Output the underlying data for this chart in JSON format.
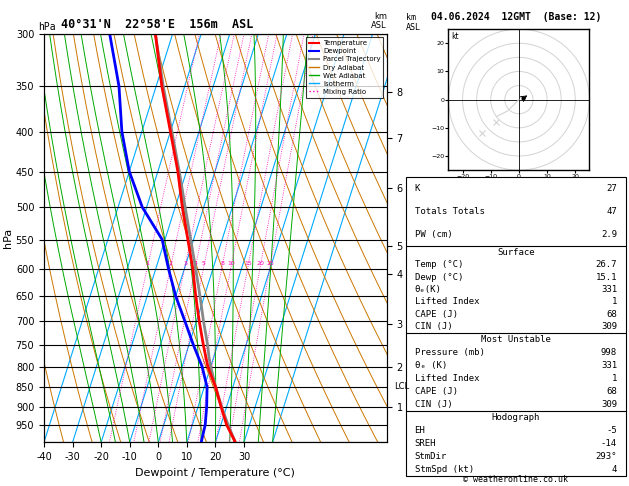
{
  "title_left": "40°31'N  22°58'E  156m  ASL",
  "title_right": "04.06.2024  12GMT  (Base: 12)",
  "xlabel": "Dewpoint / Temperature (°C)",
  "ylabel_left": "hPa",
  "footer": "© weatheronline.co.uk",
  "pressure_levels": [
    300,
    350,
    400,
    450,
    500,
    550,
    600,
    650,
    700,
    750,
    800,
    850,
    900,
    950,
    1000
  ],
  "pressure_ticks": [
    300,
    350,
    400,
    450,
    500,
    550,
    600,
    650,
    700,
    750,
    800,
    850,
    900,
    950
  ],
  "tmin": -40,
  "tmax": 35,
  "skew": 45.0,
  "isotherm_color": "#00aaff",
  "dry_adiabat_color": "#cc7700",
  "wet_adiabat_color": "#00aa00",
  "mixing_ratio_color": "#ff00bb",
  "mixing_ratio_values": [
    1,
    2,
    3,
    4,
    5,
    8,
    10,
    15,
    20,
    25
  ],
  "mixing_ratio_label_pressure": 595,
  "temp_profile_pressure": [
    1000,
    998,
    950,
    900,
    850,
    800,
    750,
    700,
    650,
    600,
    550,
    500,
    450,
    400,
    350,
    300
  ],
  "temp_profile_temp": [
    26.7,
    26.8,
    22.0,
    18.0,
    14.0,
    9.0,
    5.0,
    1.0,
    -3.0,
    -7.0,
    -12.0,
    -17.5,
    -23.0,
    -30.0,
    -38.0,
    -46.0
  ],
  "dewp_profile_pressure": [
    1000,
    998,
    950,
    900,
    850,
    800,
    750,
    700,
    650,
    600,
    550,
    500,
    450,
    400,
    350,
    300
  ],
  "dewp_profile_temp": [
    15.1,
    15.0,
    14.5,
    13.0,
    11.0,
    7.0,
    1.5,
    -4.0,
    -10.0,
    -15.5,
    -21.0,
    -31.5,
    -40.0,
    -47.0,
    -53.0,
    -62.0
  ],
  "parcel_profile_pressure": [
    998,
    950,
    900,
    850,
    800,
    780,
    750,
    700,
    650,
    600,
    550,
    500,
    450,
    400,
    350,
    300
  ],
  "parcel_profile_temp": [
    26.8,
    22.5,
    18.2,
    14.0,
    10.0,
    8.5,
    6.5,
    2.5,
    -1.5,
    -6.0,
    -11.0,
    -16.5,
    -22.5,
    -29.5,
    -37.5,
    -46.0
  ],
  "temp_color": "#ff0000",
  "dewp_color": "#0000ff",
  "parcel_color": "#888888",
  "km_ticks": [
    1,
    2,
    3,
    4,
    5,
    6,
    7,
    8
  ],
  "km_pressures": [
    900,
    802,
    705,
    608,
    560,
    472,
    408,
    356
  ],
  "lcl_pressure": 848,
  "lcl_label": "LCL",
  "K": 27,
  "TT": 47,
  "PW": "2.9",
  "surface_temp": "26.7",
  "surface_dewp": "15.1",
  "surface_theta_e": "331",
  "surface_li": "1",
  "surface_cape": "68",
  "surface_cin": "309",
  "mu_pressure": "998",
  "mu_theta_e": "331",
  "mu_li": "1",
  "mu_cape": "68",
  "mu_cin": "309",
  "hodo_eh": "-5",
  "hodo_sreh": "-14",
  "hodo_stmdir": "293",
  "hodo_stmspd": "4",
  "bg_color": "#ffffff"
}
